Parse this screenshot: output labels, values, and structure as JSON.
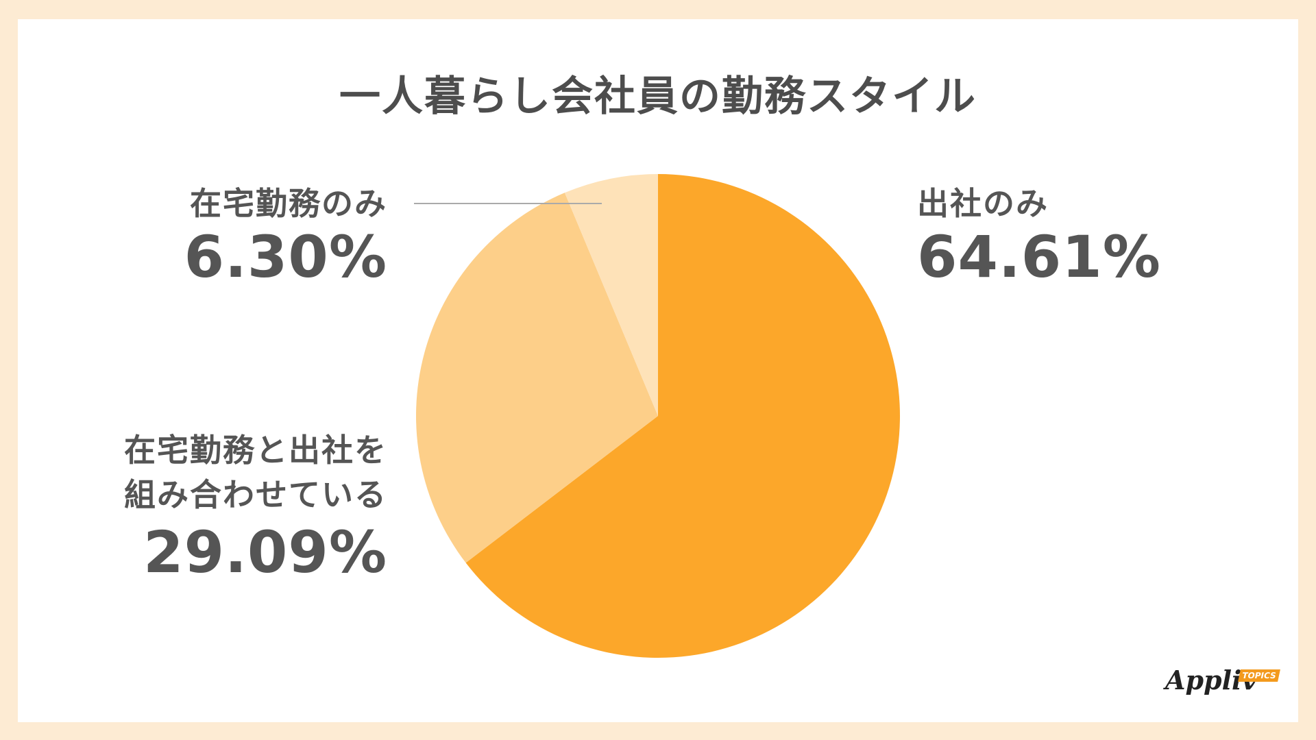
{
  "title": "一人暮らし会社員の勤務スタイル",
  "chart_data": {
    "type": "pie",
    "title": "一人暮らし会社員の勤務スタイル",
    "slices": [
      {
        "label": "出社のみ",
        "value": 64.61,
        "value_text": "64.61%",
        "color": "#fca72a"
      },
      {
        "label": "在宅勤務と出社を組み合わせている",
        "label_lines": [
          "在宅勤務と出社を",
          "組み合わせている"
        ],
        "value": 29.09,
        "value_text": "29.09%",
        "color": "#fdcf89"
      },
      {
        "label": "在宅勤務のみ",
        "value": 6.3,
        "value_text": "6.30%",
        "color": "#fee2b8"
      }
    ]
  },
  "logo": {
    "text": "Appliv",
    "badge": "TOPICS"
  }
}
